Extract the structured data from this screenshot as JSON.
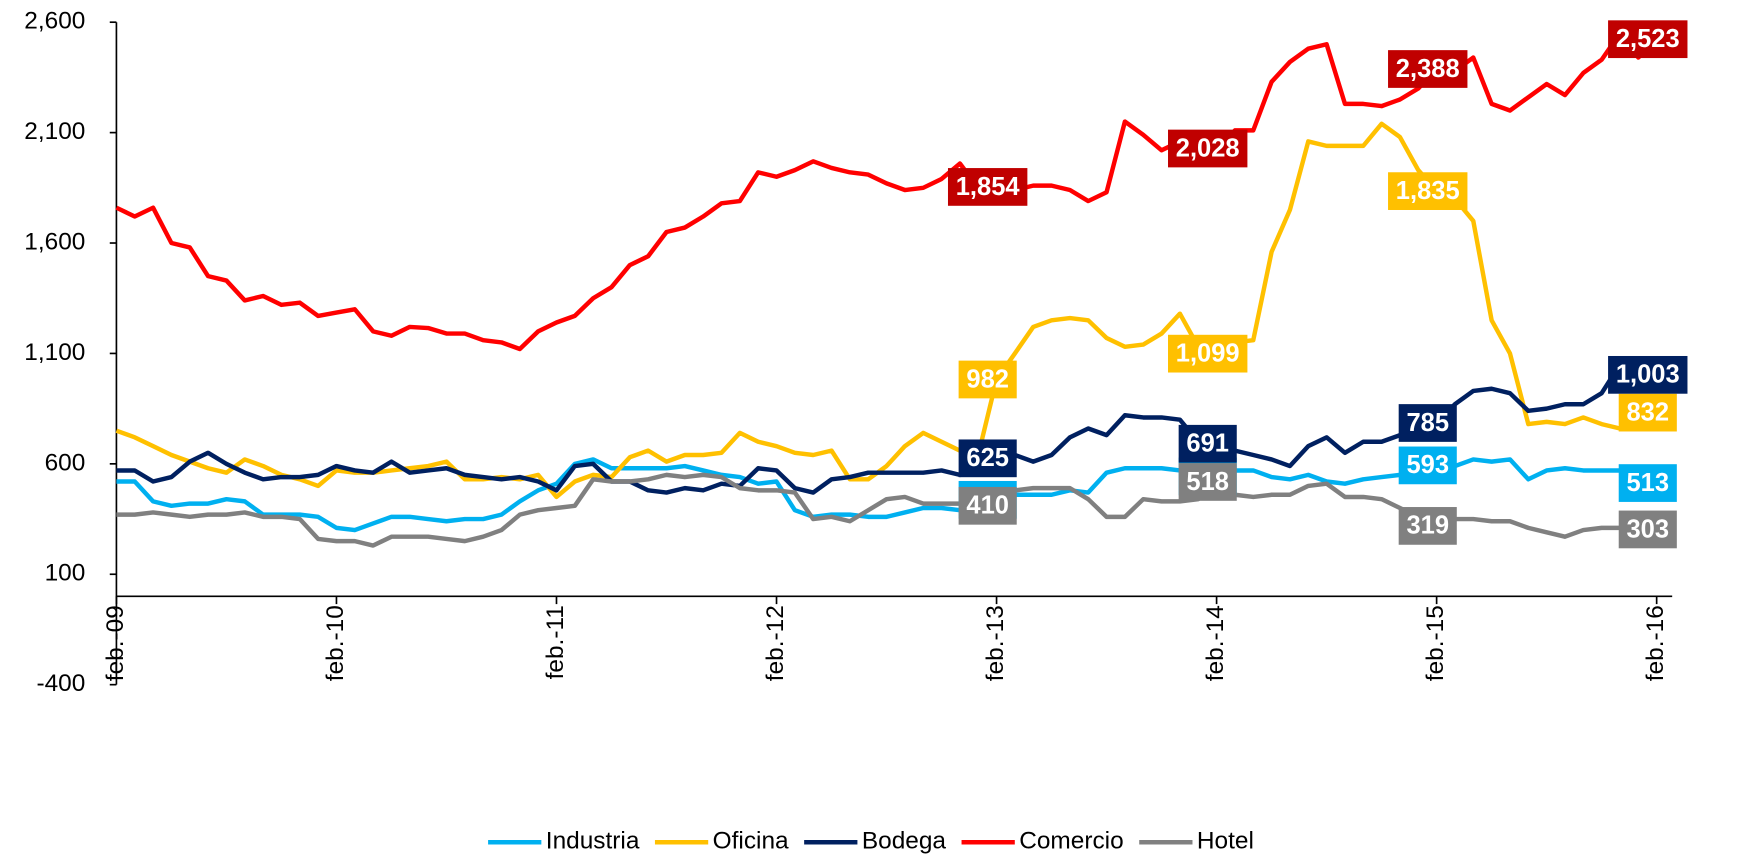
{
  "chart_data": {
    "type": "line",
    "categories": [
      "feb.-09",
      null,
      null,
      null,
      null,
      null,
      null,
      null,
      null,
      null,
      null,
      null,
      "feb.-10",
      null,
      null,
      null,
      null,
      null,
      null,
      null,
      null,
      null,
      null,
      null,
      "feb.-11",
      null,
      null,
      null,
      null,
      null,
      null,
      null,
      null,
      null,
      null,
      null,
      "feb.-12",
      null,
      null,
      null,
      null,
      null,
      null,
      null,
      null,
      null,
      null,
      null,
      "feb.-13",
      null,
      null,
      null,
      null,
      null,
      null,
      null,
      null,
      null,
      null,
      null,
      "feb.-14",
      null,
      null,
      null,
      null,
      null,
      null,
      null,
      null,
      null,
      null,
      null,
      "feb.-15",
      null,
      null,
      null,
      null,
      null,
      null,
      null,
      null,
      null,
      null,
      null,
      "feb.-16"
    ],
    "ylim": [
      -400,
      2600
    ],
    "yticks": [
      -400,
      100,
      600,
      {
        "value": 1100,
        "label": "1,100"
      },
      {
        "value": 1600,
        "label": "1,600"
      },
      {
        "value": 2100,
        "label": "2,100"
      },
      {
        "value": 2600,
        "label": "2,600"
      }
    ],
    "grid": false,
    "legend": "bottom",
    "series": [
      {
        "name": "Industria",
        "color": "#00b0f0",
        "label_color": "#00b0f0",
        "values": [
          520,
          520,
          430,
          410,
          420,
          420,
          440,
          430,
          370,
          370,
          370,
          360,
          310,
          300,
          330,
          360,
          360,
          350,
          340,
          350,
          350,
          370,
          430,
          480,
          510,
          600,
          620,
          580,
          580,
          580,
          580,
          590,
          570,
          550,
          540,
          510,
          520,
          390,
          360,
          370,
          370,
          360,
          360,
          380,
          400,
          400,
          390,
          410,
          437,
          460,
          460,
          460,
          480,
          470,
          560,
          580,
          580,
          580,
          570,
          550,
          543,
          570,
          570,
          540,
          530,
          550,
          520,
          510,
          530,
          540,
          550,
          560,
          593,
          590,
          620,
          610,
          620,
          530,
          570,
          580,
          570,
          570,
          570,
          540,
          513
        ],
        "value_labels": [
          null,
          null,
          null,
          null,
          null,
          null,
          null,
          null,
          null,
          null,
          null,
          null,
          null,
          null,
          null,
          null,
          null,
          null,
          null,
          null,
          null,
          null,
          null,
          null,
          null,
          null,
          null,
          null,
          null,
          null,
          null,
          null,
          null,
          null,
          null,
          null,
          null,
          null,
          null,
          null,
          null,
          null,
          null,
          null,
          null,
          null,
          null,
          null,
          "437",
          null,
          null,
          null,
          null,
          null,
          null,
          null,
          null,
          null,
          null,
          null,
          "543",
          null,
          null,
          null,
          null,
          null,
          null,
          null,
          null,
          null,
          null,
          null,
          "593",
          null,
          null,
          null,
          null,
          null,
          null,
          null,
          null,
          null,
          null,
          null,
          "513"
        ]
      },
      {
        "name": "Oficina",
        "color": "#ffc000",
        "label_color": "#ffc000",
        "values": [
          750,
          720,
          680,
          640,
          610,
          580,
          560,
          620,
          590,
          550,
          530,
          500,
          570,
          560,
          560,
          570,
          580,
          590,
          610,
          530,
          530,
          540,
          530,
          550,
          450,
          520,
          550,
          540,
          630,
          660,
          610,
          640,
          640,
          650,
          740,
          700,
          680,
          650,
          640,
          660,
          530,
          530,
          590,
          680,
          740,
          700,
          660,
          640,
          982,
          1100,
          1220,
          1250,
          1260,
          1250,
          1170,
          1130,
          1140,
          1190,
          1280,
          1130,
          1099,
          1150,
          1160,
          1560,
          1750,
          2060,
          2040,
          2040,
          2040,
          2140,
          2080,
          1930,
          1835,
          1800,
          1700,
          1250,
          1100,
          780,
          790,
          780,
          810,
          780,
          760,
          800,
          832
        ],
        "value_labels": [
          null,
          null,
          null,
          null,
          null,
          null,
          null,
          null,
          null,
          null,
          null,
          null,
          null,
          null,
          null,
          null,
          null,
          null,
          null,
          null,
          null,
          null,
          null,
          null,
          null,
          null,
          null,
          null,
          null,
          null,
          null,
          null,
          null,
          null,
          null,
          null,
          null,
          null,
          null,
          null,
          null,
          null,
          null,
          null,
          null,
          null,
          null,
          null,
          "982",
          null,
          null,
          null,
          null,
          null,
          null,
          null,
          null,
          null,
          null,
          null,
          "1,099",
          null,
          null,
          null,
          null,
          null,
          null,
          null,
          null,
          null,
          null,
          null,
          "1,835",
          null,
          null,
          null,
          null,
          null,
          null,
          null,
          null,
          null,
          null,
          null,
          "832"
        ]
      },
      {
        "name": "Bodega",
        "color": "#002060",
        "label_color": "#002060",
        "values": [
          570,
          570,
          520,
          540,
          610,
          650,
          600,
          560,
          530,
          540,
          540,
          550,
          590,
          570,
          560,
          610,
          560,
          570,
          580,
          550,
          540,
          530,
          540,
          520,
          480,
          590,
          600,
          520,
          520,
          480,
          470,
          490,
          480,
          510,
          500,
          580,
          570,
          490,
          470,
          530,
          540,
          560,
          560,
          560,
          560,
          570,
          550,
          560,
          625,
          640,
          610,
          640,
          720,
          760,
          730,
          820,
          810,
          810,
          800,
          700,
          691,
          660,
          640,
          620,
          590,
          680,
          720,
          650,
          700,
          700,
          730,
          760,
          785,
          870,
          930,
          940,
          920,
          840,
          850,
          870,
          870,
          920,
          1050,
          1030,
          1003
        ],
        "value_labels": [
          null,
          null,
          null,
          null,
          null,
          null,
          null,
          null,
          null,
          null,
          null,
          null,
          null,
          null,
          null,
          null,
          null,
          null,
          null,
          null,
          null,
          null,
          null,
          null,
          null,
          null,
          null,
          null,
          null,
          null,
          null,
          null,
          null,
          null,
          null,
          null,
          null,
          null,
          null,
          null,
          null,
          null,
          null,
          null,
          null,
          null,
          null,
          null,
          "625",
          null,
          null,
          null,
          null,
          null,
          null,
          null,
          null,
          null,
          null,
          null,
          "691",
          null,
          null,
          null,
          null,
          null,
          null,
          null,
          null,
          null,
          null,
          null,
          "785",
          null,
          null,
          null,
          null,
          null,
          null,
          null,
          null,
          null,
          null,
          null,
          "1,003"
        ]
      },
      {
        "name": "Comercio",
        "color": "#ff0000",
        "label_color": "#c00000",
        "values": [
          1760,
          1720,
          1760,
          1600,
          1580,
          1450,
          1430,
          1340,
          1360,
          1320,
          1330,
          1270,
          1285,
          1300,
          1200,
          1180,
          1220,
          1215,
          1190,
          1190,
          1160,
          1150,
          1120,
          1200,
          1240,
          1270,
          1350,
          1400,
          1500,
          1540,
          1650,
          1670,
          1720,
          1780,
          1790,
          1920,
          1900,
          1930,
          1970,
          1940,
          1920,
          1910,
          1870,
          1840,
          1850,
          1890,
          1960,
          1850,
          1854,
          1840,
          1860,
          1860,
          1840,
          1790,
          1830,
          2150,
          2090,
          2020,
          2060,
          2050,
          2028,
          2110,
          2110,
          2330,
          2420,
          2480,
          2500,
          2230,
          2230,
          2220,
          2250,
          2300,
          2388,
          2380,
          2440,
          2230,
          2200,
          2260,
          2320,
          2270,
          2370,
          2430,
          2550,
          2440,
          2523
        ],
        "value_labels": [
          null,
          null,
          null,
          null,
          null,
          null,
          null,
          null,
          null,
          null,
          null,
          null,
          null,
          null,
          null,
          null,
          null,
          null,
          null,
          null,
          null,
          null,
          null,
          null,
          null,
          null,
          null,
          null,
          null,
          null,
          null,
          null,
          null,
          null,
          null,
          null,
          null,
          null,
          null,
          null,
          null,
          null,
          null,
          null,
          null,
          null,
          null,
          null,
          "1,854",
          null,
          null,
          null,
          null,
          null,
          null,
          null,
          null,
          null,
          null,
          null,
          "2,028",
          null,
          null,
          null,
          null,
          null,
          null,
          null,
          null,
          null,
          null,
          null,
          "2,388",
          null,
          null,
          null,
          null,
          null,
          null,
          null,
          null,
          null,
          null,
          null,
          "2,523"
        ]
      },
      {
        "name": "Hotel",
        "color": "#808080",
        "label_color": "#808080",
        "values": [
          370,
          370,
          380,
          370,
          360,
          370,
          370,
          380,
          360,
          360,
          350,
          260,
          250,
          250,
          230,
          270,
          270,
          270,
          260,
          250,
          270,
          300,
          370,
          390,
          400,
          410,
          530,
          520,
          520,
          530,
          550,
          540,
          550,
          540,
          490,
          480,
          480,
          470,
          350,
          360,
          340,
          390,
          440,
          450,
          420,
          420,
          420,
          410,
          410,
          480,
          490,
          490,
          490,
          440,
          360,
          360,
          440,
          430,
          430,
          440,
          518,
          460,
          450,
          460,
          460,
          500,
          510,
          450,
          450,
          440,
          400,
          360,
          319,
          350,
          350,
          340,
          340,
          310,
          290,
          270,
          300,
          310,
          310,
          330,
          303
        ],
        "value_labels": [
          null,
          null,
          null,
          null,
          null,
          null,
          null,
          null,
          null,
          null,
          null,
          null,
          null,
          null,
          null,
          null,
          null,
          null,
          null,
          null,
          null,
          null,
          null,
          null,
          null,
          null,
          null,
          null,
          null,
          null,
          null,
          null,
          null,
          null,
          null,
          null,
          null,
          null,
          null,
          null,
          null,
          null,
          null,
          null,
          null,
          null,
          null,
          null,
          "410",
          null,
          null,
          null,
          null,
          null,
          null,
          null,
          null,
          null,
          null,
          null,
          "518",
          null,
          null,
          null,
          null,
          null,
          null,
          null,
          null,
          null,
          null,
          null,
          "319",
          null,
          null,
          null,
          null,
          null,
          null,
          null,
          null,
          null,
          null,
          null,
          "303"
        ]
      }
    ]
  }
}
